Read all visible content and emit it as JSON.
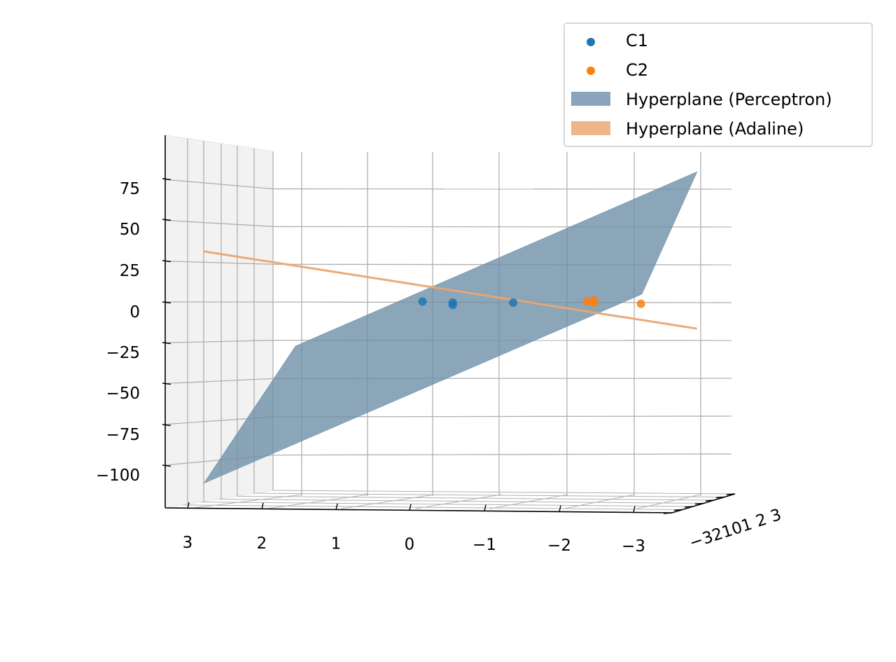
{
  "chart_data": {
    "type": "scatter",
    "projection": "3d",
    "title": "",
    "xlabel": "",
    "ylabel": "",
    "zlabel": "",
    "xlim": [
      -3.5,
      3.5
    ],
    "ylim": [
      -3.5,
      3.5
    ],
    "zlim": [
      -125,
      100
    ],
    "x_ticks": [
      "3",
      "2",
      "1",
      "0",
      "−1",
      "−2",
      "−3"
    ],
    "y_ticks": [
      "−3",
      "−2",
      "−1",
      "0",
      "1",
      "2",
      "3"
    ],
    "y_ticks_overlapped_text": "−32101 2 3",
    "z_ticks": [
      "75",
      "50",
      "25",
      "0",
      "−25",
      "−50",
      "−75",
      "−100"
    ],
    "z_tick_values": [
      75,
      50,
      25,
      0,
      -25,
      -50,
      -75,
      -100
    ],
    "grid": true,
    "legend_placement": "top-right",
    "series": [
      {
        "name": "C1",
        "kind": "scatter",
        "color": "#1f77b4",
        "points": [
          {
            "x": 0.15,
            "y": 0.0,
            "z": 1
          },
          {
            "x": -0.3,
            "y": 0.0,
            "z": 0
          },
          {
            "x": -0.3,
            "y": 0.0,
            "z": -2
          },
          {
            "x": -1.2,
            "y": 0.0,
            "z": 0
          }
        ]
      },
      {
        "name": "C2",
        "kind": "scatter",
        "color": "#ff7f0e",
        "points": [
          {
            "x": -2.3,
            "y": 0.0,
            "z": 1
          },
          {
            "x": -2.4,
            "y": 0.0,
            "z": 2
          },
          {
            "x": -2.4,
            "y": 0.0,
            "z": 0
          },
          {
            "x": -3.1,
            "y": 0.0,
            "z": -1
          }
        ]
      },
      {
        "name": "Hyperplane (Perceptron)",
        "kind": "surface",
        "color": "#8aa5bb"
      },
      {
        "name": "Hyperplane (Adaline)",
        "kind": "surface",
        "color": "#efb68a"
      }
    ]
  }
}
